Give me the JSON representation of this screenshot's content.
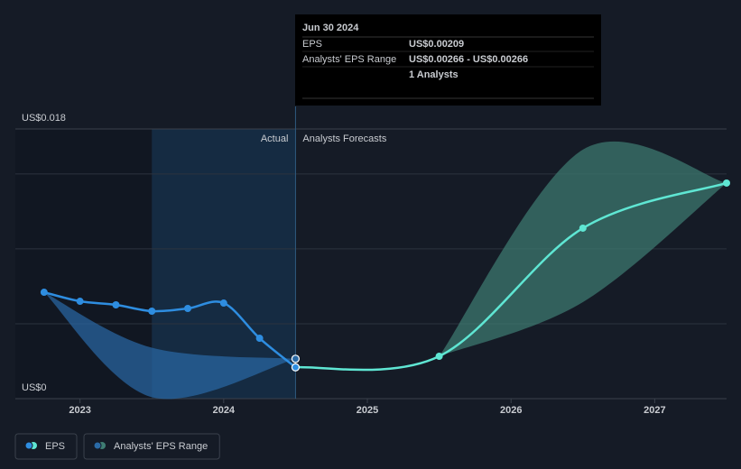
{
  "chart_data": {
    "type": "line",
    "labels": {
      "actual": "Actual",
      "forecast": "Analysts Forecasts"
    },
    "divider_x": 2024.5,
    "highlight": [
      2023.5,
      2024.5
    ],
    "xlim": [
      2022.55,
      2027.5
    ],
    "xticks": [
      2023,
      2024,
      2025,
      2026,
      2027
    ],
    "ylim": [
      0,
      0.018
    ],
    "yticks": [
      {
        "value": 0,
        "label": "US$0"
      },
      {
        "value": 0.018,
        "label": "US$0.018"
      }
    ],
    "ygrid": [
      0.005,
      0.01,
      0.015
    ],
    "series": [
      {
        "name": "EPS",
        "color": "#2e8de0",
        "forecast_color": "#5fe6d3",
        "x": [
          2022.75,
          2023.0,
          2023.25,
          2023.5,
          2023.75,
          2024.0,
          2024.25,
          2024.5,
          2025.5,
          2026.5,
          2027.5
        ],
        "values": [
          0.0071,
          0.0065,
          0.00626,
          0.00584,
          0.00602,
          0.00638,
          0.00403,
          0.00209,
          0.00283,
          0.01138,
          0.01439
        ]
      },
      {
        "name": "Analysts' EPS Range",
        "color": "#2a6aa6",
        "forecast_color": "#3f7d73",
        "bands": [
          {
            "x": [
              2022.75,
              2023.5,
              2024.5
            ],
            "low": [
              0.0071,
              0.0001,
              0.00266
            ],
            "high": [
              0.0071,
              0.0034,
              0.00266
            ]
          },
          {
            "x": [
              2025.5,
              2026.5,
              2027.5
            ],
            "low": [
              0.00283,
              0.00644,
              0.01439
            ],
            "high": [
              0.00283,
              0.01662,
              0.01439
            ]
          }
        ]
      }
    ],
    "tooltip": {
      "date": "Jun 30 2024",
      "rows": [
        [
          "EPS",
          "US$0.00209"
        ],
        [
          "Analysts' EPS Range",
          "US$0.00266 - US$0.00266"
        ]
      ],
      "note": "1 Analysts"
    }
  }
}
